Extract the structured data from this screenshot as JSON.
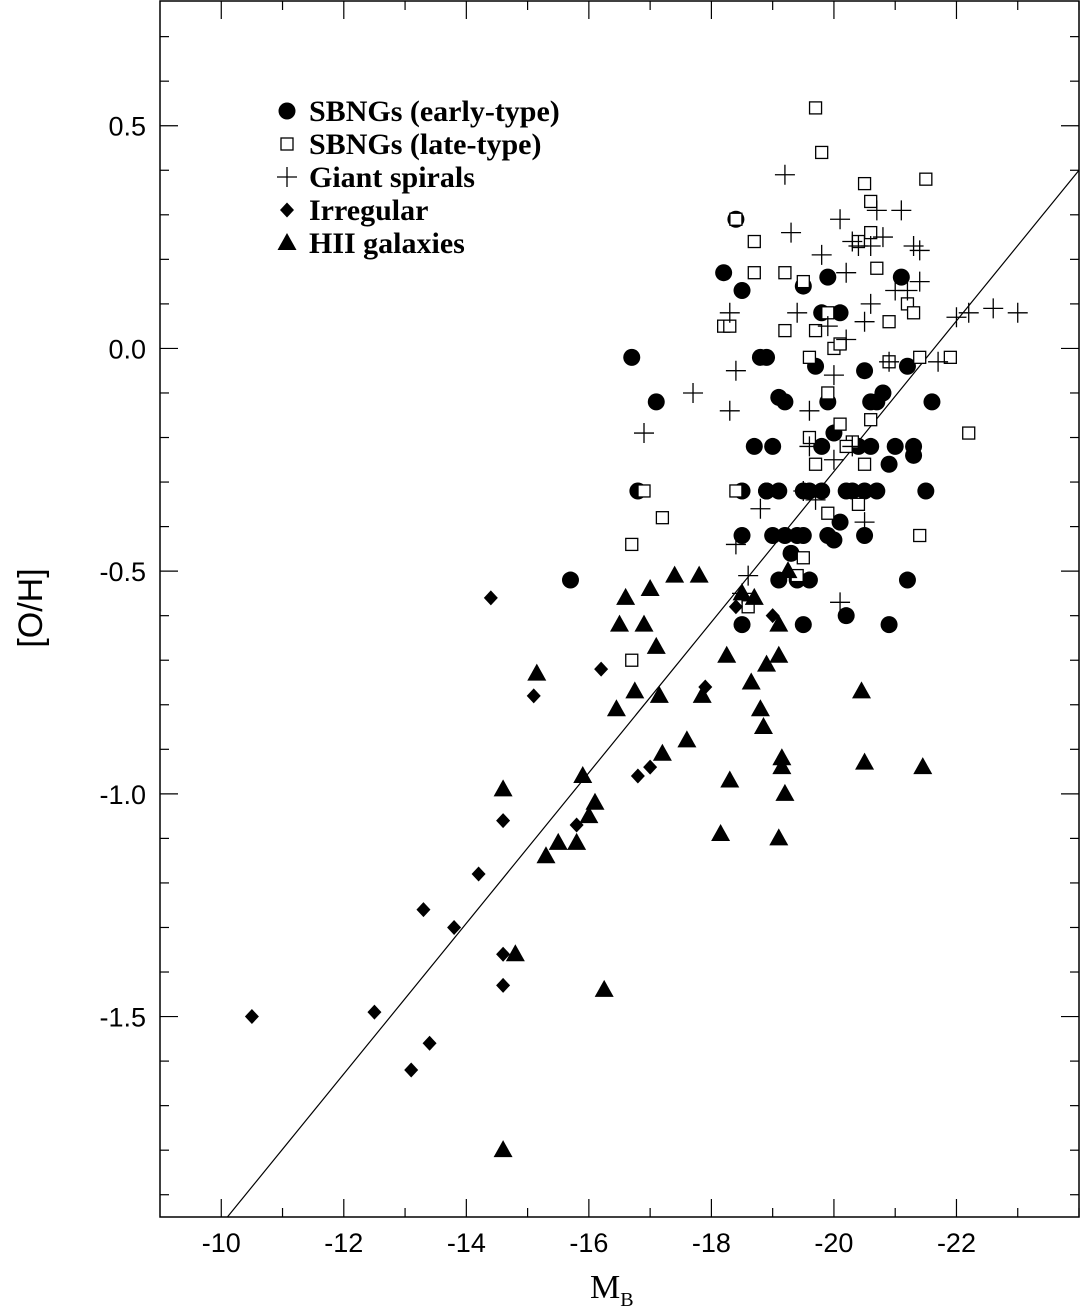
{
  "chart_data": {
    "type": "scatter",
    "xlabel_main": "M",
    "xlabel_sub": "B",
    "ylabel": "[O/H]",
    "xlim": [
      -9,
      -24
    ],
    "ylim": [
      -1.95,
      0.78
    ],
    "x_major_ticks": [
      -10,
      -12,
      -14,
      -16,
      -18,
      -20,
      -22
    ],
    "x_tick_labels": [
      "-10",
      "-12",
      "-14",
      "-16",
      "-18",
      "-20",
      "-22"
    ],
    "x_minor_step": 1,
    "y_major_ticks": [
      0.5,
      0.0,
      -0.5,
      -1.0,
      -1.5
    ],
    "y_tick_labels": [
      "0.5",
      "0.0",
      "-0.5",
      "-1.0",
      "-1.5"
    ],
    "y_minor_step": 0.1,
    "grid": false,
    "legend_position": "top-left",
    "fit_line": {
      "x": [
        -10.1,
        -24
      ],
      "y": [
        -1.95,
        0.4
      ]
    },
    "series": [
      {
        "name": "SBNGs (early-type)",
        "marker": "filled-circle",
        "points": [
          [
            -16.7,
            -0.02
          ],
          [
            -16.8,
            -0.32
          ],
          [
            -17.1,
            -0.12
          ],
          [
            -15.7,
            -0.52
          ],
          [
            -18.2,
            0.17
          ],
          [
            -18.5,
            0.13
          ],
          [
            -18.4,
            0.29
          ],
          [
            -18.8,
            -0.02
          ],
          [
            -18.9,
            -0.02
          ],
          [
            -18.5,
            -0.42
          ],
          [
            -18.5,
            -0.62
          ],
          [
            -18.5,
            -0.32
          ],
          [
            -18.7,
            -0.22
          ],
          [
            -18.9,
            -0.32
          ],
          [
            -19.0,
            -0.22
          ],
          [
            -19.0,
            -0.42
          ],
          [
            -19.1,
            -0.11
          ],
          [
            -19.2,
            -0.12
          ],
          [
            -19.1,
            -0.32
          ],
          [
            -19.2,
            -0.42
          ],
          [
            -19.1,
            -0.52
          ],
          [
            -19.3,
            -0.46
          ],
          [
            -19.4,
            -0.52
          ],
          [
            -19.5,
            0.14
          ],
          [
            -19.5,
            -0.32
          ],
          [
            -19.5,
            -0.42
          ],
          [
            -19.6,
            -0.32
          ],
          [
            -19.6,
            -0.52
          ],
          [
            -19.5,
            -0.62
          ],
          [
            -19.7,
            -0.04
          ],
          [
            -19.8,
            0.08
          ],
          [
            -19.9,
            0.16
          ],
          [
            -19.8,
            -0.22
          ],
          [
            -19.8,
            -0.32
          ],
          [
            -19.9,
            -0.42
          ],
          [
            -19.9,
            -0.12
          ],
          [
            -20.0,
            -0.19
          ],
          [
            -20.0,
            -0.43
          ],
          [
            -20.1,
            0.08
          ],
          [
            -20.1,
            -0.39
          ],
          [
            -20.2,
            -0.32
          ],
          [
            -20.2,
            -0.6
          ],
          [
            -20.3,
            -0.32
          ],
          [
            -20.4,
            -0.22
          ],
          [
            -20.5,
            -0.05
          ],
          [
            -20.5,
            -0.42
          ],
          [
            -20.5,
            -0.32
          ],
          [
            -20.6,
            -0.22
          ],
          [
            -20.6,
            -0.12
          ],
          [
            -20.7,
            -0.32
          ],
          [
            -20.8,
            -0.1
          ],
          [
            -20.9,
            -0.26
          ],
          [
            -20.9,
            -0.62
          ],
          [
            -21.0,
            -0.22
          ],
          [
            -21.1,
            0.16
          ],
          [
            -21.2,
            -0.04
          ],
          [
            -21.3,
            -0.22
          ],
          [
            -21.3,
            -0.24
          ],
          [
            -21.2,
            -0.52
          ],
          [
            -21.5,
            -0.32
          ],
          [
            -21.6,
            -0.12
          ],
          [
            -20.7,
            -0.12
          ],
          [
            -18.9,
            -0.32
          ],
          [
            -19.4,
            -0.42
          ]
        ]
      },
      {
        "name": "SBNGs (late-type)",
        "marker": "open-square",
        "points": [
          [
            -16.7,
            -0.44
          ],
          [
            -16.9,
            -0.32
          ],
          [
            -17.2,
            -0.38
          ],
          [
            -16.7,
            -0.7
          ],
          [
            -18.2,
            0.05
          ],
          [
            -18.3,
            0.05
          ],
          [
            -18.4,
            0.29
          ],
          [
            -18.7,
            0.17
          ],
          [
            -18.7,
            0.24
          ],
          [
            -18.6,
            -0.58
          ],
          [
            -18.4,
            -0.32
          ],
          [
            -19.2,
            0.04
          ],
          [
            -19.2,
            0.17
          ],
          [
            -19.4,
            -0.51
          ],
          [
            -19.5,
            -0.47
          ],
          [
            -19.5,
            0.15
          ],
          [
            -19.6,
            -0.02
          ],
          [
            -19.6,
            -0.2
          ],
          [
            -19.7,
            0.54
          ],
          [
            -19.7,
            -0.26
          ],
          [
            -19.7,
            0.04
          ],
          [
            -19.8,
            0.44
          ],
          [
            -19.9,
            0.08
          ],
          [
            -19.9,
            -0.37
          ],
          [
            -20.0,
            0.0
          ],
          [
            -20.1,
            0.01
          ],
          [
            -20.1,
            -0.17
          ],
          [
            -20.3,
            -0.21
          ],
          [
            -20.4,
            -0.35
          ],
          [
            -20.4,
            0.24
          ],
          [
            -20.5,
            0.37
          ],
          [
            -20.5,
            -0.26
          ],
          [
            -20.6,
            0.33
          ],
          [
            -20.6,
            0.26
          ],
          [
            -20.7,
            0.18
          ],
          [
            -20.6,
            -0.16
          ],
          [
            -20.9,
            0.06
          ],
          [
            -20.9,
            -0.03
          ],
          [
            -21.2,
            0.1
          ],
          [
            -21.3,
            0.08
          ],
          [
            -21.4,
            -0.02
          ],
          [
            -21.4,
            -0.42
          ],
          [
            -21.5,
            0.38
          ],
          [
            -21.9,
            -0.02
          ],
          [
            -22.2,
            -0.19
          ],
          [
            -19.9,
            -0.1
          ],
          [
            -20.2,
            -0.22
          ]
        ]
      },
      {
        "name": "Giant spirals",
        "marker": "plus",
        "points": [
          [
            -16.9,
            -0.19
          ],
          [
            -17.7,
            -0.1
          ],
          [
            -18.3,
            -0.14
          ],
          [
            -18.3,
            0.08
          ],
          [
            -18.4,
            -0.05
          ],
          [
            -18.4,
            -0.44
          ],
          [
            -18.5,
            -0.55
          ],
          [
            -18.6,
            -0.51
          ],
          [
            -18.8,
            -0.36
          ],
          [
            -19.2,
            0.39
          ],
          [
            -19.3,
            0.26
          ],
          [
            -19.4,
            0.08
          ],
          [
            -19.6,
            -0.14
          ],
          [
            -19.6,
            -0.22
          ],
          [
            -19.7,
            -0.34
          ],
          [
            -19.8,
            0.21
          ],
          [
            -19.9,
            0.05
          ],
          [
            -20.0,
            -0.25
          ],
          [
            -20.1,
            0.29
          ],
          [
            -20.2,
            0.17
          ],
          [
            -20.2,
            0.02
          ],
          [
            -20.3,
            -0.22
          ],
          [
            -20.3,
            0.24
          ],
          [
            -20.4,
            0.23
          ],
          [
            -20.5,
            -0.39
          ],
          [
            -20.6,
            0.1
          ],
          [
            -20.6,
            0.23
          ],
          [
            -20.7,
            0.31
          ],
          [
            -20.8,
            0.25
          ],
          [
            -20.9,
            -0.03
          ],
          [
            -21.0,
            0.13
          ],
          [
            -21.1,
            0.31
          ],
          [
            -21.2,
            0.13
          ],
          [
            -21.3,
            0.23
          ],
          [
            -21.4,
            0.22
          ],
          [
            -21.4,
            0.15
          ],
          [
            -21.7,
            -0.03
          ],
          [
            -22.0,
            0.07
          ],
          [
            -22.2,
            0.08
          ],
          [
            -22.6,
            0.09
          ],
          [
            -23.0,
            0.08
          ],
          [
            -20.1,
            -0.57
          ],
          [
            -19.5,
            -0.32
          ],
          [
            -20.0,
            -0.06
          ],
          [
            -20.5,
            0.06
          ]
        ]
      },
      {
        "name": "Irregular",
        "marker": "filled-diamond",
        "points": [
          [
            -10.5,
            -1.5
          ],
          [
            -12.5,
            -1.49
          ],
          [
            -13.1,
            -1.62
          ],
          [
            -13.3,
            -1.26
          ],
          [
            -13.4,
            -1.56
          ],
          [
            -13.8,
            -1.3
          ],
          [
            -14.2,
            -1.18
          ],
          [
            -14.4,
            -0.56
          ],
          [
            -14.6,
            -1.06
          ],
          [
            -14.6,
            -1.36
          ],
          [
            -14.6,
            -1.43
          ],
          [
            -15.1,
            -0.78
          ],
          [
            -15.8,
            -1.07
          ],
          [
            -16.2,
            -0.72
          ],
          [
            -16.8,
            -0.96
          ],
          [
            -17.0,
            -0.94
          ],
          [
            -17.9,
            -0.76
          ],
          [
            -18.4,
            -0.58
          ],
          [
            -19.0,
            -0.6
          ]
        ]
      },
      {
        "name": "HII galaxies",
        "marker": "filled-triangle",
        "points": [
          [
            -14.6,
            -0.99
          ],
          [
            -14.8,
            -1.36
          ],
          [
            -14.6,
            -1.8
          ],
          [
            -15.15,
            -0.73
          ],
          [
            -15.3,
            -1.14
          ],
          [
            -15.5,
            -1.11
          ],
          [
            -15.8,
            -1.11
          ],
          [
            -15.9,
            -0.96
          ],
          [
            -16.0,
            -1.05
          ],
          [
            -16.1,
            -1.02
          ],
          [
            -16.25,
            -1.44
          ],
          [
            -16.45,
            -0.81
          ],
          [
            -16.5,
            -0.62
          ],
          [
            -16.6,
            -0.56
          ],
          [
            -16.75,
            -0.77
          ],
          [
            -16.9,
            -0.62
          ],
          [
            -17.0,
            -0.54
          ],
          [
            -17.1,
            -0.67
          ],
          [
            -17.15,
            -0.78
          ],
          [
            -17.2,
            -0.91
          ],
          [
            -17.4,
            -0.51
          ],
          [
            -17.6,
            -0.88
          ],
          [
            -17.8,
            -0.51
          ],
          [
            -17.85,
            -0.78
          ],
          [
            -18.15,
            -1.09
          ],
          [
            -18.25,
            -0.69
          ],
          [
            -18.3,
            -0.97
          ],
          [
            -18.5,
            -0.55
          ],
          [
            -18.65,
            -0.75
          ],
          [
            -18.7,
            -0.56
          ],
          [
            -18.8,
            -0.81
          ],
          [
            -18.85,
            -0.85
          ],
          [
            -18.9,
            -0.71
          ],
          [
            -19.1,
            -0.62
          ],
          [
            -19.1,
            -0.69
          ],
          [
            -19.1,
            -1.1
          ],
          [
            -19.15,
            -0.92
          ],
          [
            -19.15,
            -0.94
          ],
          [
            -19.2,
            -1.0
          ],
          [
            -19.25,
            -0.5
          ],
          [
            -20.45,
            -0.77
          ],
          [
            -20.5,
            -0.93
          ],
          [
            -21.45,
            -0.94
          ]
        ]
      }
    ]
  }
}
